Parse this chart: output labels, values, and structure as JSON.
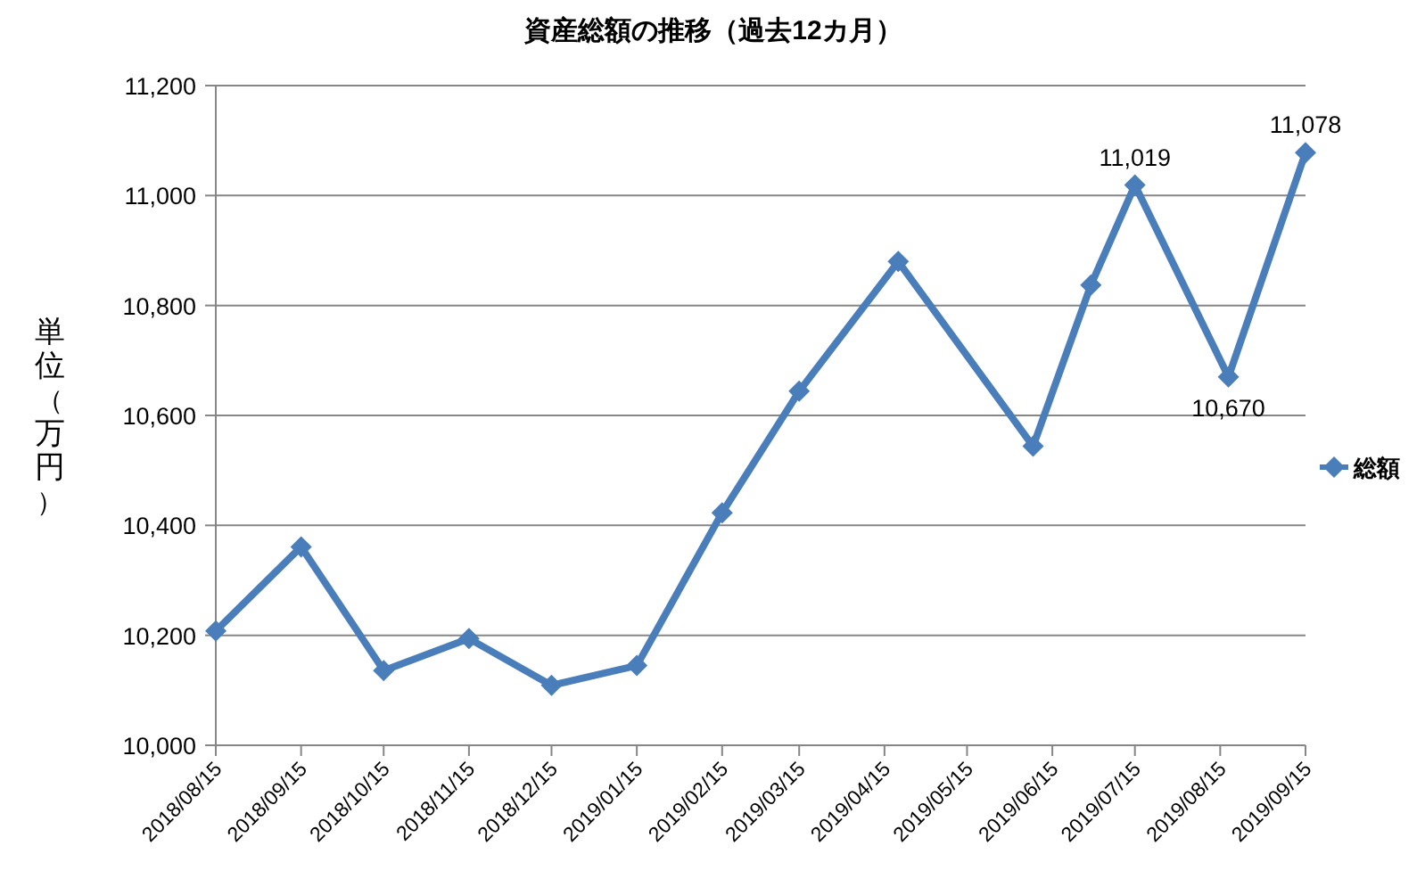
{
  "chart_data": {
    "type": "line",
    "title": "資産総額の推移（過去12カ月）",
    "ylabel": "単位（万円）",
    "x": [
      "2018-08-15",
      "2018-09-15",
      "2018-10-15",
      "2018-11-15",
      "2018-12-15",
      "2019-01-15",
      "2019-02-15",
      "2019-03-15",
      "2019-04-20",
      "2019-06-08",
      "2019-06-29",
      "2019-07-15",
      "2019-08-18",
      "2019-09-15"
    ],
    "series": [
      {
        "name": "総額",
        "color": "#4a7ebb",
        "values": [
          10208,
          10361,
          10136,
          10194,
          10109,
          10145,
          10423,
          10644,
          10880,
          10544,
          10837,
          11019,
          10670,
          11078
        ],
        "value_labels": [
          null,
          null,
          null,
          null,
          null,
          null,
          null,
          null,
          null,
          null,
          null,
          "11,019",
          "10,670",
          "11,078"
        ]
      }
    ],
    "xlim": [
      "2018-08-15",
      "2019-09-15"
    ],
    "xticks": [
      {
        "value": "2018-08-15",
        "label": "2018/08/15"
      },
      {
        "value": "2018-09-15",
        "label": "2018/09/15"
      },
      {
        "value": "2018-10-15",
        "label": "2018/10/15"
      },
      {
        "value": "2018-11-15",
        "label": "2018/11/15"
      },
      {
        "value": "2018-12-15",
        "label": "2018/12/15"
      },
      {
        "value": "2019-01-15",
        "label": "2019/01/15"
      },
      {
        "value": "2019-02-15",
        "label": "2019/02/15"
      },
      {
        "value": "2019-03-15",
        "label": "2019/03/15"
      },
      {
        "value": "2019-04-15",
        "label": "2019/04/15"
      },
      {
        "value": "2019-05-15",
        "label": "2019/05/15"
      },
      {
        "value": "2019-06-15",
        "label": "2019/06/15"
      },
      {
        "value": "2019-07-15",
        "label": "2019/07/15"
      },
      {
        "value": "2019-08-15",
        "label": "2019/08/15"
      },
      {
        "value": "2019-09-15",
        "label": "2019/09/15"
      }
    ],
    "ylim": [
      10000,
      11200
    ],
    "yticks": [
      {
        "value": 10000,
        "label": "10,000"
      },
      {
        "value": 10200,
        "label": "10,200"
      },
      {
        "value": 10400,
        "label": "10,400"
      },
      {
        "value": 10600,
        "label": "10,600"
      },
      {
        "value": 10800,
        "label": "10,800"
      },
      {
        "value": 11000,
        "label": "11,000"
      },
      {
        "value": 11200,
        "label": "11,200"
      }
    ],
    "grid": "y",
    "legend": "right",
    "marker": "diamond",
    "line_style": "solid"
  }
}
